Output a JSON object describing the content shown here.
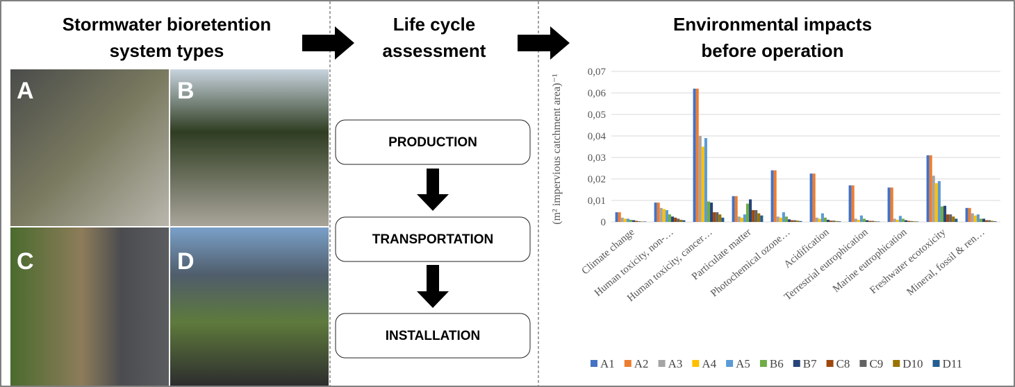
{
  "panels": {
    "systems": {
      "title_lines": [
        "Stormwater bioretention",
        "system types"
      ],
      "photos": [
        "A",
        "B",
        "C",
        "D"
      ]
    },
    "lca": {
      "title_lines": [
        "Life cycle",
        "assessment"
      ],
      "steps": [
        "PRODUCTION",
        "TRANSPORTATION",
        "INSTALLATION"
      ]
    },
    "impacts": {
      "title_lines": [
        "Environmental impacts",
        "before operation"
      ]
    }
  },
  "chart_data": {
    "type": "bar",
    "ylabel": "(m² impervious catchment area)⁻¹",
    "categories": [
      "Climate change",
      "Human toxicity, non-…",
      "Human toxicity, cancer…",
      "Particulate matter",
      "Photochemical ozone…",
      "Acidification",
      "Terrestrial eutrophication",
      "Marine eutrophication",
      "Freshwater ecotoxicity",
      "Mineral, fossil & ren…"
    ],
    "series": [
      {
        "name": "A1",
        "color": "#4472c4",
        "values": [
          0.0045,
          0.009,
          0.062,
          0.012,
          0.024,
          0.0225,
          0.017,
          0.016,
          0.031,
          0.0065
        ]
      },
      {
        "name": "A2",
        "color": "#ed7d31",
        "values": [
          0.0045,
          0.009,
          0.062,
          0.012,
          0.024,
          0.0225,
          0.017,
          0.016,
          0.031,
          0.0065
        ]
      },
      {
        "name": "A3",
        "color": "#a5a5a5",
        "values": [
          0.002,
          0.0065,
          0.04,
          0.0025,
          0.0025,
          0.002,
          0.0015,
          0.0015,
          0.0215,
          0.004
        ]
      },
      {
        "name": "A4",
        "color": "#ffc000",
        "values": [
          0.0015,
          0.006,
          0.035,
          0.002,
          0.002,
          0.0015,
          0.001,
          0.001,
          0.018,
          0.003
        ]
      },
      {
        "name": "A5",
        "color": "#5b9bd5",
        "values": [
          0.0015,
          0.0055,
          0.039,
          0.0035,
          0.0045,
          0.004,
          0.003,
          0.0028,
          0.019,
          0.0035
        ]
      },
      {
        "name": "B6",
        "color": "#70ad47",
        "values": [
          0.001,
          0.0035,
          0.0095,
          0.0085,
          0.0025,
          0.002,
          0.0015,
          0.0015,
          0.0072,
          0.0015
        ]
      },
      {
        "name": "B7",
        "color": "#264478",
        "values": [
          0.0008,
          0.0025,
          0.009,
          0.0105,
          0.0012,
          0.001,
          0.0008,
          0.0008,
          0.0075,
          0.0015
        ]
      },
      {
        "name": "C8",
        "color": "#9e480e",
        "values": [
          0.0005,
          0.002,
          0.0045,
          0.0055,
          0.0008,
          0.0006,
          0.0005,
          0.0005,
          0.0035,
          0.0008
        ]
      },
      {
        "name": "C9",
        "color": "#636363",
        "values": [
          0.0003,
          0.0015,
          0.0045,
          0.0055,
          0.0008,
          0.0006,
          0.0005,
          0.0004,
          0.0035,
          0.0008
        ]
      },
      {
        "name": "D10",
        "color": "#997300",
        "values": [
          0.0002,
          0.001,
          0.0035,
          0.004,
          0.0006,
          0.0004,
          0.0003,
          0.0003,
          0.0025,
          0.0005
        ]
      },
      {
        "name": "D11",
        "color": "#255e91",
        "values": [
          0.0002,
          0.0008,
          0.002,
          0.003,
          0.0004,
          0.0003,
          0.0002,
          0.0002,
          0.0015,
          0.0003
        ]
      }
    ],
    "ylim": [
      0,
      0.07
    ],
    "yticks": [
      0,
      {
        "value": 0.01,
        "label": "0,01"
      },
      {
        "value": 0.02,
        "label": "0,02"
      },
      {
        "value": 0.03,
        "label": "0,03"
      },
      {
        "value": 0.04,
        "label": "0,04"
      },
      {
        "value": 0.05,
        "label": "0,05"
      },
      {
        "value": 0.06,
        "label": "0,06"
      },
      {
        "value": 0.07,
        "label": "0,07"
      }
    ],
    "grid": true,
    "legend": "bottom"
  }
}
